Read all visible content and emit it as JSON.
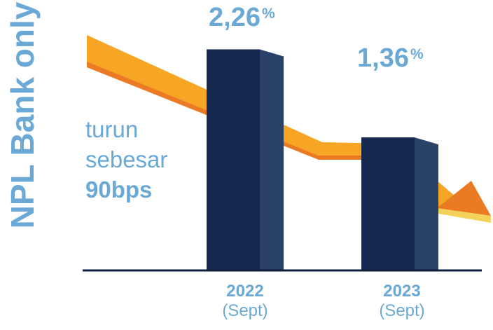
{
  "title": "NPL Bank only",
  "annotation": {
    "line1": "turun",
    "line2": "sebesar",
    "line3": "90bps"
  },
  "chart_data": {
    "type": "bar",
    "title": "NPL Bank only",
    "categories": [
      "2022",
      "2023"
    ],
    "category_sublabels": [
      "(Sept)",
      "(Sept)"
    ],
    "values": [
      2.26,
      1.36
    ],
    "value_labels": [
      {
        "number": "2,26",
        "unit": "%"
      },
      {
        "number": "1,36",
        "unit": "%"
      }
    ],
    "ylim": [
      0,
      2.65
    ],
    "grid": false,
    "legend": "none"
  },
  "colors": {
    "bar_front": "#15284f",
    "bar_side": "#2a4168",
    "text": "#6aa9d6",
    "arrow_light": "#f7a525",
    "arrow_dark": "#ea7b24",
    "arrow_tip": "#f3d25c",
    "baseline": "#0f1f3d"
  }
}
